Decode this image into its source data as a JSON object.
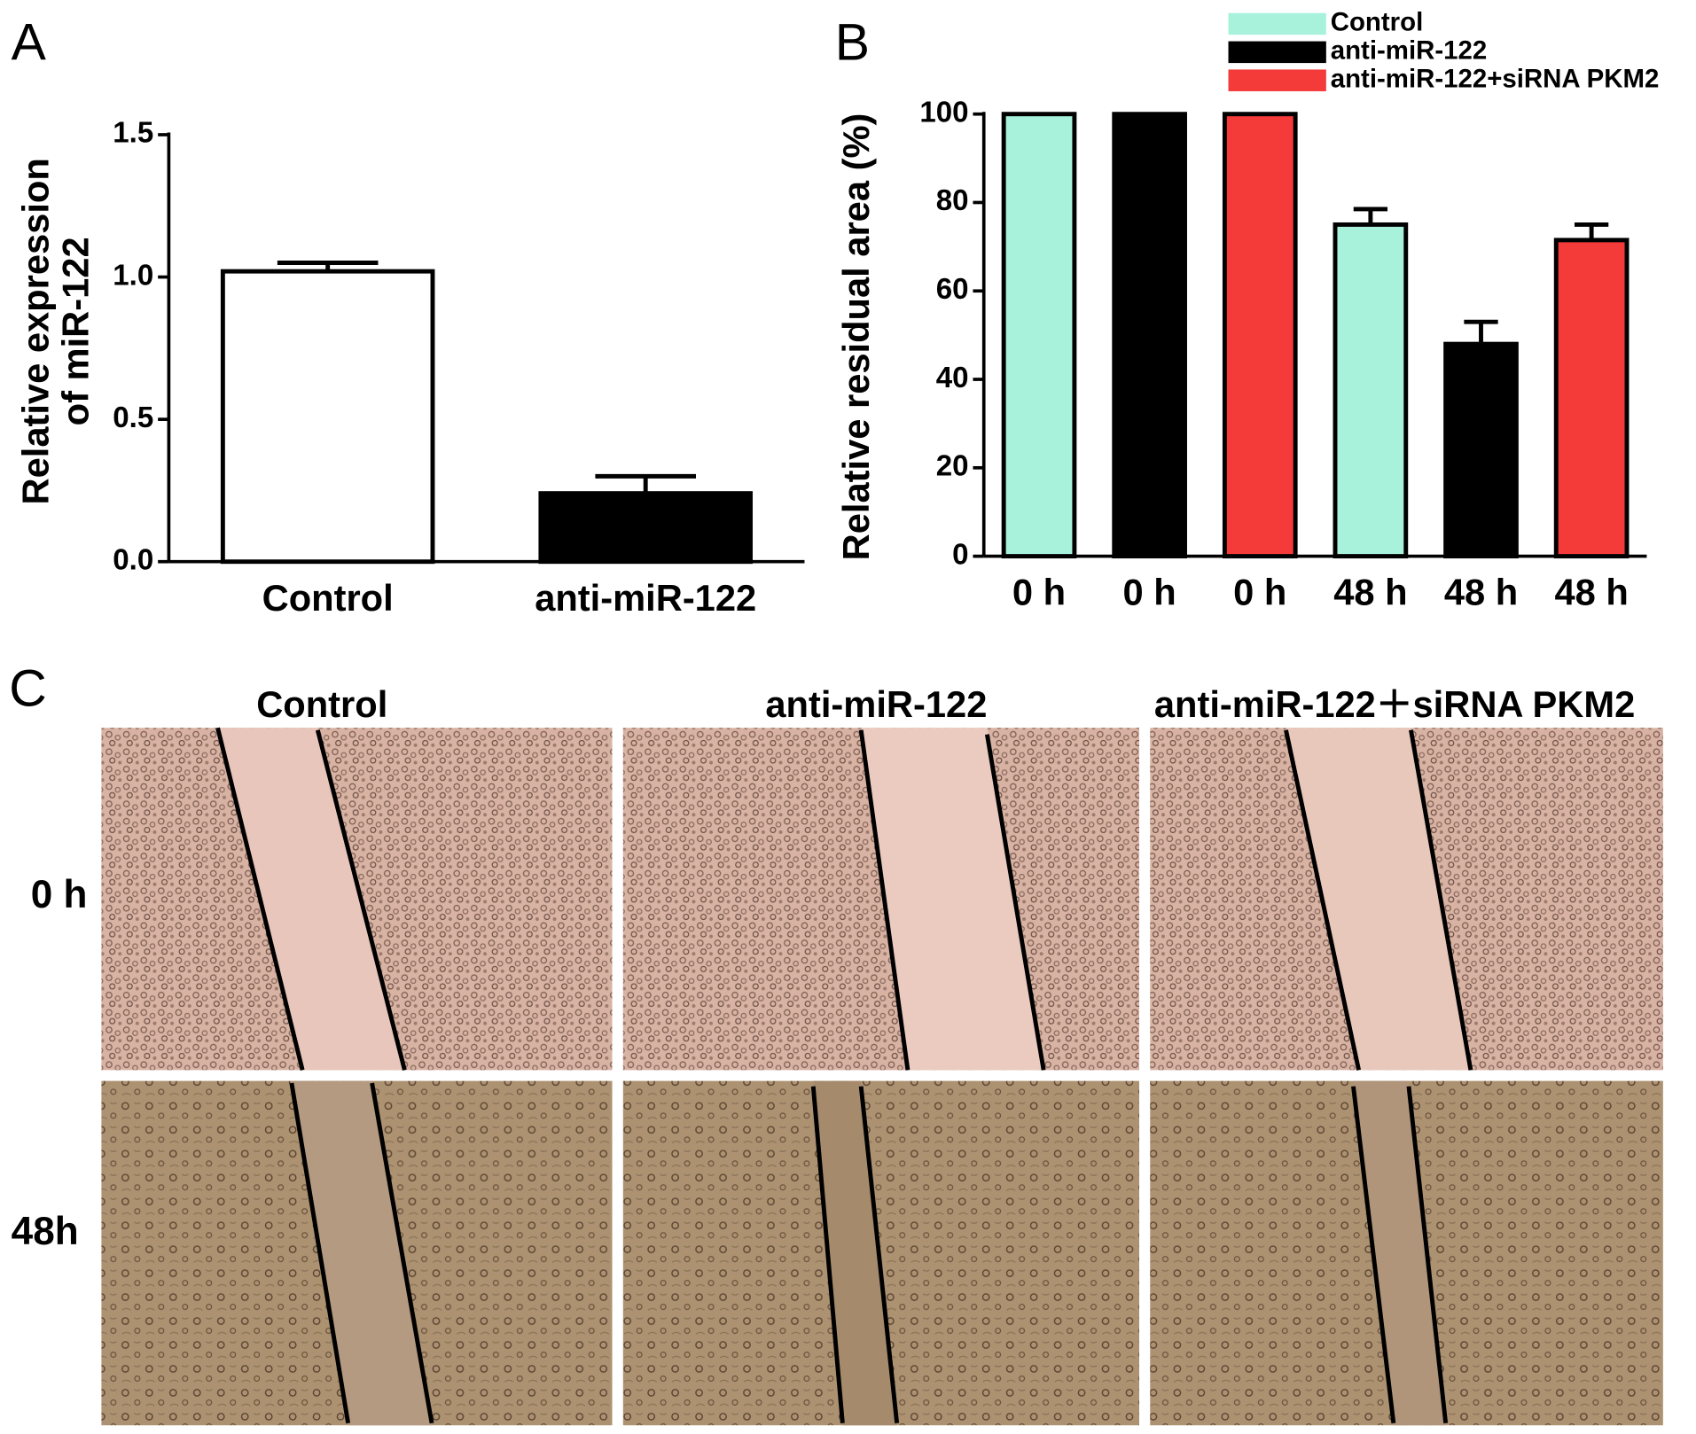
{
  "chart_data": [
    {
      "type": "bar",
      "panel_label": "A",
      "ylabel": [
        "Relative expression",
        "of miR-122"
      ],
      "categories": [
        "Control",
        "anti-miR-122"
      ],
      "values": [
        1.02,
        0.24
      ],
      "errors": [
        0.03,
        0.06
      ],
      "colors": [
        "#ffffff",
        "#000000"
      ],
      "ylim": [
        0,
        1.5
      ],
      "yticks": [
        {
          "value": 0,
          "label": "0.0"
        },
        {
          "value": 0.5,
          "label": "0.5"
        },
        {
          "value": 1,
          "label": "1.0"
        },
        {
          "value": 1.5,
          "label": "1.5"
        }
      ]
    },
    {
      "type": "bar",
      "panel_label": "B",
      "ylabel": [
        "Relative residual area (%)"
      ],
      "categories": [
        "0 h",
        "0 h",
        "0 h",
        "48 h",
        "48 h",
        "48 h"
      ],
      "series": [
        {
          "name": "Control",
          "color": "#a8f2dc",
          "values": [
            100,
            null,
            null,
            75,
            null,
            null
          ],
          "errors": [
            null,
            null,
            null,
            3.5,
            null,
            null
          ]
        },
        {
          "name": "anti-miR-122",
          "color": "#000000",
          "values": [
            null,
            100,
            null,
            null,
            48,
            null
          ],
          "errors": [
            null,
            null,
            null,
            null,
            5,
            null
          ]
        },
        {
          "name": "anti-miR-122+siRNA PKM2",
          "color": "#f53a3a",
          "values": [
            null,
            null,
            100,
            null,
            null,
            71.5
          ],
          "errors": [
            null,
            null,
            null,
            null,
            null,
            3.5
          ]
        }
      ],
      "legend": "top-right",
      "ylim": [
        0,
        100
      ],
      "yticks": [
        0,
        20,
        40,
        60,
        80,
        100
      ]
    }
  ],
  "panel_c": {
    "label": "C",
    "columns": [
      "Control",
      "anti-miR-122",
      "anti-miR-122＋siRNA PKM2"
    ],
    "rows": [
      "0 h",
      "48h"
    ]
  }
}
